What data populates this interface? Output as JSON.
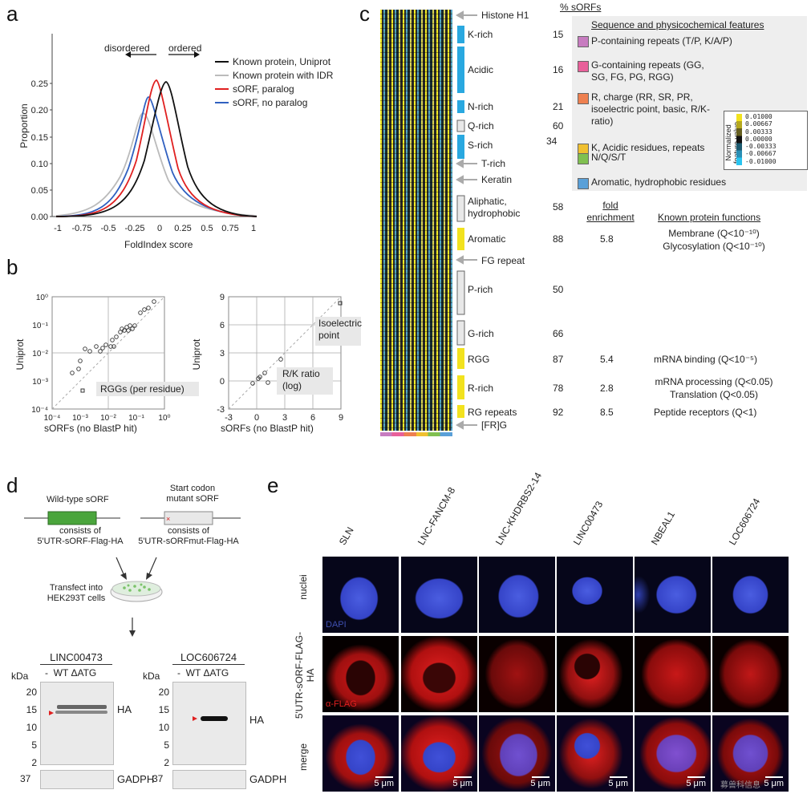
{
  "panel_labels": {
    "a": "a",
    "b": "b",
    "c": "c",
    "d": "d",
    "e": "e"
  },
  "panel_a": {
    "ylabel": "Proportion",
    "xlabel": "FoldIndex score",
    "arrow_left": "disordered",
    "arrow_right": "ordered",
    "legend": [
      {
        "label": "Known protein, Uniprot",
        "color": "#111111"
      },
      {
        "label": "Known protein with IDR",
        "color": "#bbbbbb"
      },
      {
        "label": "sORF, paralog",
        "color": "#e02020"
      },
      {
        "label": "sORF, no paralog",
        "color": "#3060c0"
      }
    ]
  },
  "panel_b": {
    "left": {
      "ylabel": "Uniprot",
      "xlabel": "sORFs (no BlastP hit)",
      "annotation": "RGGs (per residue)"
    },
    "right": {
      "ylabel": "Uniprot",
      "xlabel": "sORFs (no BlastP hit)",
      "annotation1": "Isoelectric point",
      "annotation2": "R/K ratio (log)"
    }
  },
  "panel_c": {
    "header_pct": "% sORFs",
    "rows": [
      {
        "label": "Histone H1",
        "type": "arrow",
        "pct": ""
      },
      {
        "label": "K-rich",
        "type": "blue",
        "pct": "15"
      },
      {
        "label": "Acidic",
        "type": "blue",
        "pct": "16"
      },
      {
        "label": "N-rich",
        "type": "blue",
        "pct": "21"
      },
      {
        "label": "Q-rich",
        "type": "grey",
        "pct": "60"
      },
      {
        "label": "S-rich",
        "type": "blue",
        "pct": "34"
      },
      {
        "label": "T-rich",
        "type": "arrow",
        "pct": ""
      },
      {
        "label": "Keratin",
        "type": "arrow",
        "pct": ""
      },
      {
        "label": "Aliphatic, hydrophobic",
        "type": "grey",
        "pct": "58"
      },
      {
        "label": "Aromatic",
        "type": "yellow",
        "pct": "88"
      },
      {
        "label": "FG repeat",
        "type": "arrow",
        "pct": ""
      },
      {
        "label": "P-rich",
        "type": "grey",
        "pct": "50"
      },
      {
        "label": "G-rich",
        "type": "grey",
        "pct": "66"
      },
      {
        "label": "RGG",
        "type": "yellow",
        "pct": "87"
      },
      {
        "label": "R-rich",
        "type": "yellow",
        "pct": "78"
      },
      {
        "label": "RG repeats",
        "type": "yellow",
        "pct": "92"
      },
      {
        "label": "[FR]G",
        "type": "arrow",
        "pct": ""
      }
    ],
    "features_title": "Sequence and physicochemical features",
    "features": [
      {
        "label": "P-containing repeats (T/P, K/A/P)",
        "color": "#c77cc0"
      },
      {
        "label": "G-containing repeats (GG, SG, FG, PG, RGG)",
        "color": "#e8609a"
      },
      {
        "label": "R, charge (RR, SR, PR, isoelectric point, basic, R/K-ratio)",
        "color": "#ee8050"
      },
      {
        "label": "K, Acidic residues, repeats",
        "color": "#f0c030"
      },
      {
        "label": "N/Q/S/T",
        "color": "#80c050"
      },
      {
        "label": "Aromatic, hydrophobic residues",
        "color": "#5aa0d8"
      }
    ],
    "scale_title": "Normalized feature value",
    "scale_values": [
      "0.01000",
      "0.00667",
      "0.00333",
      "0.00000",
      "-0.00333",
      "-0.00667",
      "-0.01000"
    ],
    "fold_header": "fold enrichment",
    "func_header": "Known protein functions",
    "enrichment": [
      {
        "row": "Aromatic",
        "fold": "5.8",
        "func1": "Membrane (Q<10⁻¹⁰)",
        "func2": "Glycosylation (Q<10⁻¹⁰)"
      },
      {
        "row": "RGG",
        "fold": "5.4",
        "func1": "mRNA binding (Q<10⁻⁵)",
        "func2": ""
      },
      {
        "row": "R-rich",
        "fold": "2.8",
        "func1": "mRNA processing (Q<0.05)",
        "func2": "Translation (Q<0.05)"
      },
      {
        "row": "RG repeats",
        "fold": "8.5",
        "func1": "Peptide receptors (Q<1)",
        "func2": ""
      }
    ]
  },
  "panel_d": {
    "wt_title": "Wild-type sORF",
    "wt_desc1": "consists of",
    "wt_desc2": "5'UTR-sORF-Flag-HA",
    "mut_title1": "Start codon",
    "mut_title2": "mutant sORF",
    "mut_desc1": "consists of",
    "mut_desc2": "5'UTR-sORFmut-Flag-HA",
    "transfect1": "Transfect into",
    "transfect2": "HEK293T cells",
    "blot1_title": "LINC00473",
    "blot2_title": "LOC606724",
    "lanes": "-  WT ΔATG",
    "kda": "kDa",
    "markers": [
      "20",
      "15",
      "10",
      "5",
      "2"
    ],
    "marker37": "37",
    "ha": "HA",
    "gadph": "GADPH"
  },
  "panel_e": {
    "columns": [
      "SLN",
      "LNC-FANCM-8",
      "LNC-KHDRBS2-14",
      "LINC00473",
      "NBEAL1",
      "LOC606724"
    ],
    "rows": [
      "nuclei",
      "5'UTR-sORF-FLAG-HA",
      "merge"
    ],
    "dapi": "DAPI",
    "aflag": "α-FLAG",
    "scale": "5 μm",
    "watermark": "募兽科信息"
  }
}
